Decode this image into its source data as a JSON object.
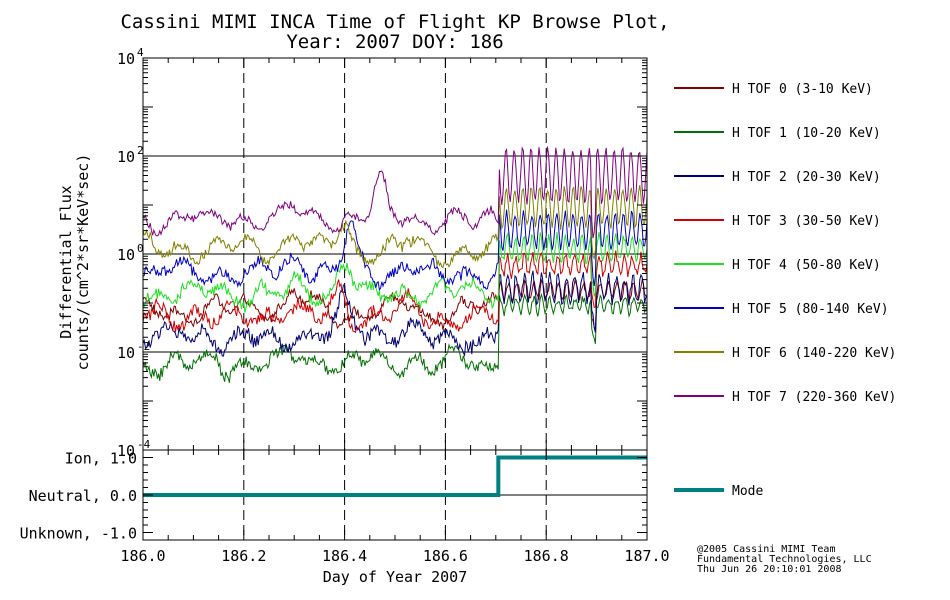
{
  "chart_data": [
    {
      "type": "line",
      "title": "Cassini MIMI INCA Time of Flight KP Browse Plot,",
      "subtitle": "Year: 2007 DOY: 186",
      "ylabel": "Differential Flux",
      "ylabel2": "counts/(cm^2*sr*KeV*sec)",
      "yscale": "log",
      "ylim": [
        0.0001,
        10000
      ],
      "y_ticks": [
        0.0001,
        0.01,
        1,
        100,
        10000
      ],
      "y_tick_labels": [
        {
          "base": "10",
          "exp": "-4"
        },
        {
          "base": "10",
          "exp": "-2"
        },
        {
          "base": "10",
          "exp": "0"
        },
        {
          "base": "10",
          "exp": "2"
        },
        {
          "base": "10",
          "exp": "4"
        }
      ],
      "xlim": [
        186.0,
        187.0
      ],
      "x_grid": [
        186.2,
        186.4,
        186.6,
        186.8
      ],
      "legend_position": "right",
      "series": [
        {
          "name": "H TOF 0 (3-10 KeV)",
          "color": "#800000",
          "before": 0.07,
          "after": 0.18,
          "event": 186.3,
          "eventAmp": 0.2,
          "noise": 0.35,
          "after_osc": 0.35
        },
        {
          "name": "H TOF 1 (10-20 KeV)",
          "color": "#007000",
          "before": 0.006,
          "after": 0.09,
          "event": 0,
          "eventAmp": 0,
          "noise": 0.45,
          "after_osc": 0.3
        },
        {
          "name": "H TOF 2 (20-30 KeV)",
          "color": "#000070",
          "before": 0.02,
          "after": 0.2,
          "event": 186.4,
          "eventAmp": 0.6,
          "noise": 0.55,
          "after_osc": 0.5
        },
        {
          "name": "H TOF 3 (30-50 KeV)",
          "color": "#d00000",
          "before": 0.05,
          "after": 0.6,
          "event": 186.39,
          "eventAmp": 0.5,
          "noise": 0.5,
          "after_osc": 0.4
        },
        {
          "name": "H TOF 4 (50-80 KeV)",
          "color": "#20e020",
          "before": 0.15,
          "after": 1.3,
          "event": 186.4,
          "eventAmp": 0.8,
          "noise": 0.45,
          "after_osc": 0.5
        },
        {
          "name": "H TOF 5 (80-140 KeV)",
          "color": "#0000c0",
          "before": 0.4,
          "after": 3.0,
          "event": 186.41,
          "eventAmp": 0.9,
          "noise": 0.4,
          "after_osc": 0.7
        },
        {
          "name": "H TOF 6 (140-220 KeV)",
          "color": "#808000",
          "before": 1.3,
          "after": 9.0,
          "event": 186.4,
          "eventAmp": 0.6,
          "noise": 0.35,
          "after_osc": 0.8
        },
        {
          "name": "H TOF 7 (220-360 KeV)",
          "color": "#800080",
          "before": 5.0,
          "after": 40.0,
          "event": 186.47,
          "eventAmp": 0.8,
          "noise": 0.3,
          "after_osc": 1.1
        }
      ],
      "step_time": 186.705
    },
    {
      "type": "line",
      "xlabel": "Day of Year 2007",
      "ylim": [
        -1.2,
        1.2
      ],
      "y_tick_labels": [
        "Ion, 1.0",
        "Neutral, 0.0",
        "Unknown, -1.0"
      ],
      "y_tick_values": [
        1.0,
        0.0,
        -1.0
      ],
      "x_ticks": [
        186.0,
        186.2,
        186.4,
        186.6,
        186.8,
        187.0
      ],
      "x_tick_labels": [
        "186.0",
        "186.2",
        "186.4",
        "186.6",
        "186.8",
        "187.0"
      ],
      "series": [
        {
          "name": "Mode",
          "color": "#008080",
          "x": [
            186.0,
            186.705,
            186.705,
            187.0
          ],
          "y": [
            0.0,
            0.0,
            1.0,
            1.0
          ]
        }
      ]
    }
  ],
  "credit": [
    "@2005 Cassini MIMI Team",
    "Fundamental Technologies, LLC",
    "Thu Jun 26 20:10:01 2008"
  ]
}
